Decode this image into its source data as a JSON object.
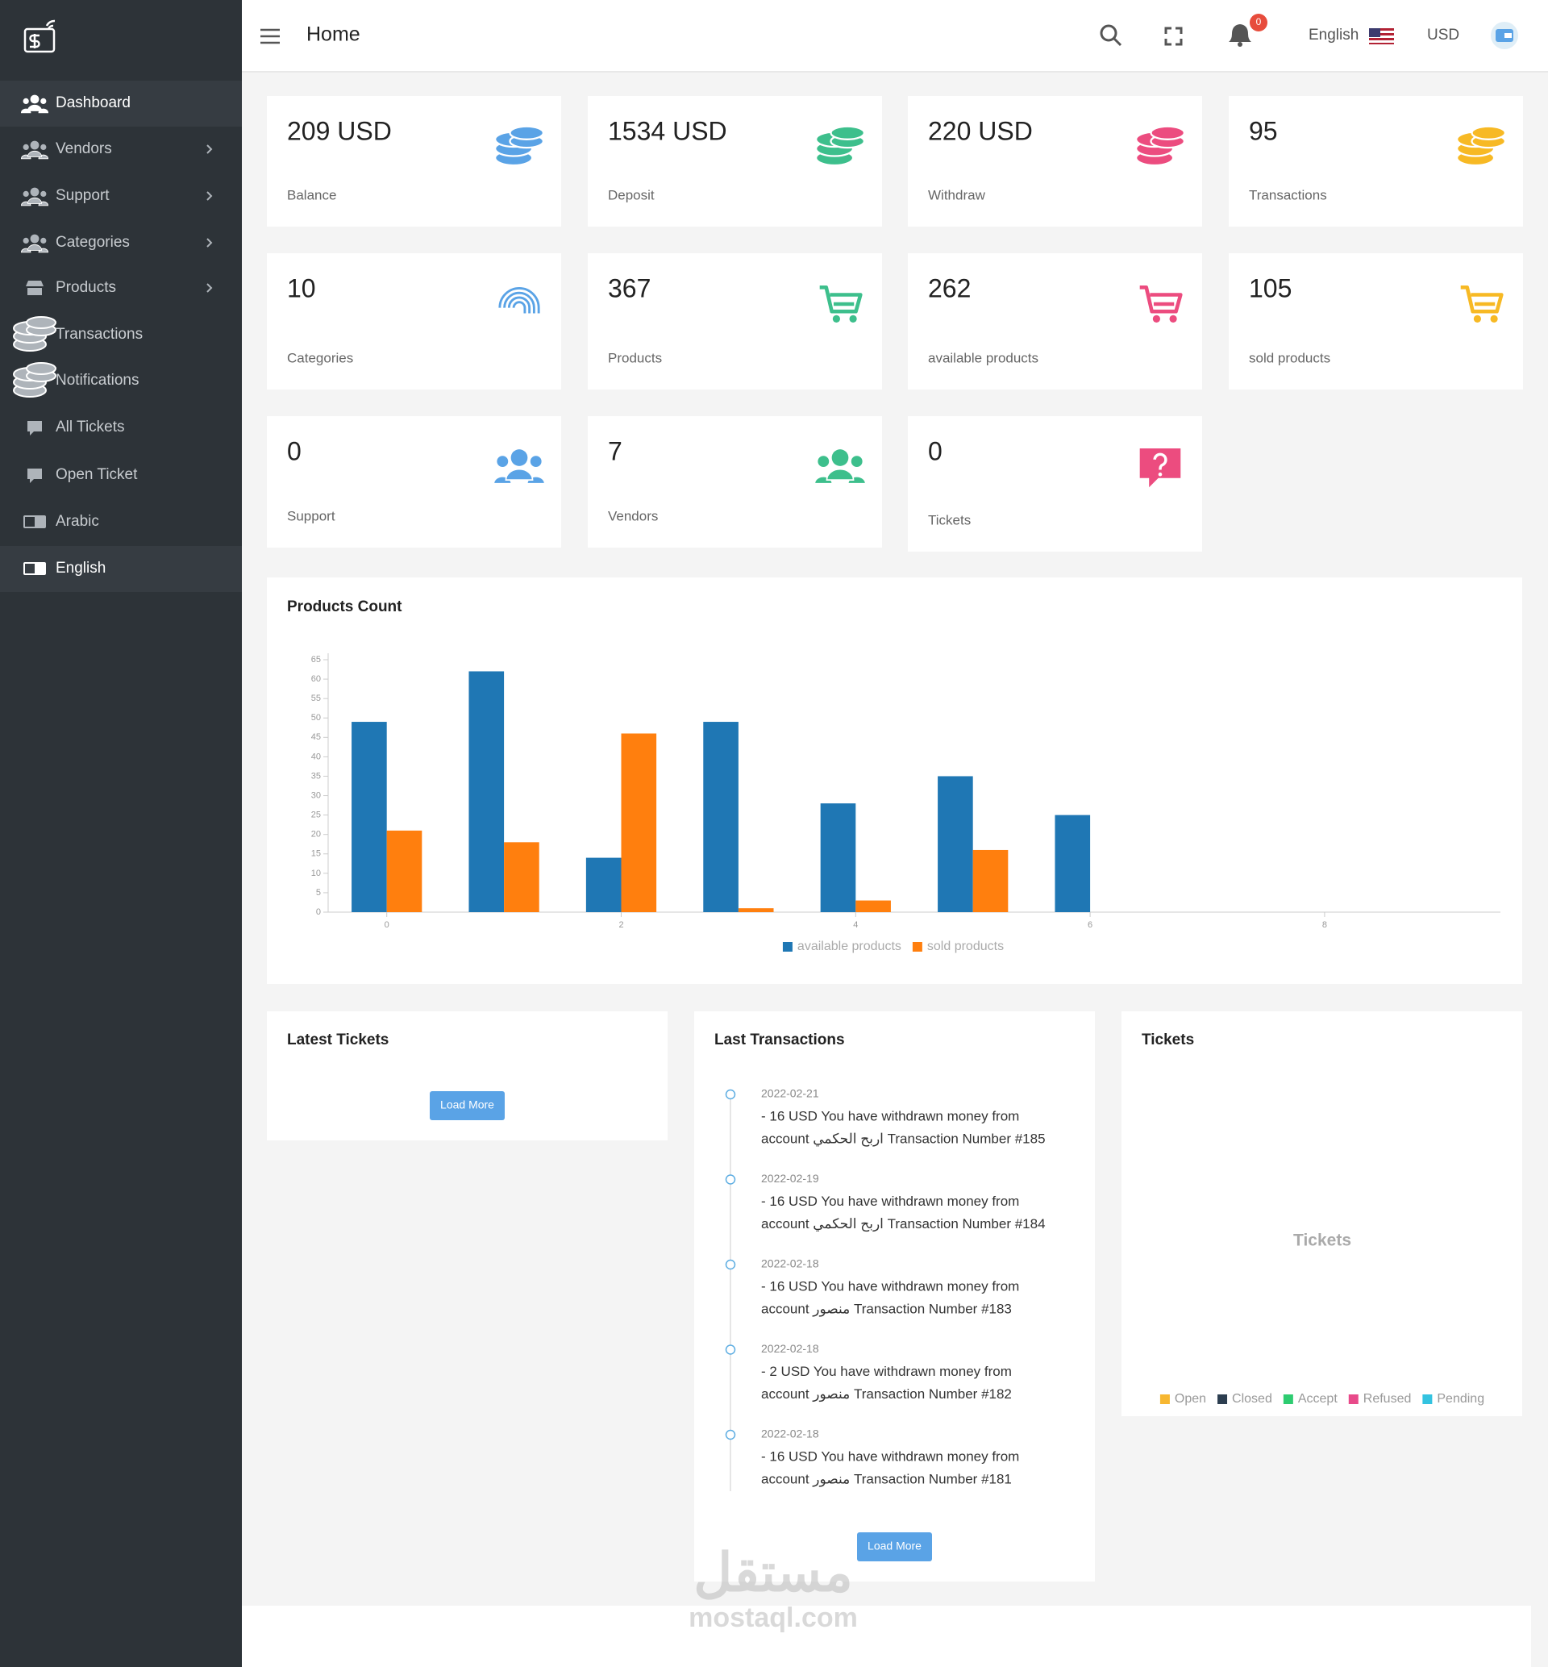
{
  "sidebar": {
    "menu": [
      {
        "label": "Dashboard",
        "icon": "users",
        "has_submenu": false,
        "active": true
      },
      {
        "label": "Vendors",
        "icon": "users",
        "has_submenu": true,
        "active": false
      },
      {
        "label": "Support",
        "icon": "users",
        "has_submenu": true,
        "active": false
      },
      {
        "label": "Categories",
        "icon": "users",
        "has_submenu": true,
        "active": false
      },
      {
        "label": "Products",
        "icon": "shop",
        "has_submenu": true,
        "active": false
      },
      {
        "label": "Transactions",
        "icon": "coins",
        "has_submenu": false,
        "active": false
      },
      {
        "label": "Notifications",
        "icon": "coins",
        "has_submenu": false,
        "active": false
      },
      {
        "label": "All Tickets",
        "icon": "chat",
        "has_submenu": false,
        "active": false
      },
      {
        "label": "Open Ticket",
        "icon": "chat",
        "has_submenu": false,
        "active": false
      },
      {
        "label": "Arabic",
        "icon": "lang",
        "has_submenu": false,
        "active": false
      },
      {
        "label": "English",
        "icon": "lang",
        "has_submenu": false,
        "active": true
      }
    ]
  },
  "header": {
    "title": "Home",
    "notifications": 0,
    "language": "English",
    "currency": "USD"
  },
  "stats": [
    {
      "value": "209 USD",
      "label": "Balance",
      "icon": "coins",
      "color": "#5aa3e6"
    },
    {
      "value": "1534 USD",
      "label": "Deposit",
      "icon": "coins",
      "color": "#3dbf8c"
    },
    {
      "value": "220 USD",
      "label": "Withdraw",
      "icon": "coins",
      "color": "#ec4c7f"
    },
    {
      "value": "95",
      "label": "Transactions",
      "icon": "coins",
      "color": "#f7b924"
    },
    {
      "value": "10",
      "label": "Categories",
      "icon": "fingerprint",
      "color": "#5aa3e6"
    },
    {
      "value": "367",
      "label": "Products",
      "icon": "cart",
      "color": "#3dbf8c"
    },
    {
      "value": "262",
      "label": "available products",
      "icon": "cart",
      "color": "#ec4c7f"
    },
    {
      "value": "105",
      "label": "sold products",
      "icon": "cart",
      "color": "#f7b924"
    },
    {
      "value": "0",
      "label": "Support",
      "icon": "users",
      "color": "#5aa3e6"
    },
    {
      "value": "7",
      "label": "Vendors",
      "icon": "users",
      "color": "#3dbf8c"
    },
    {
      "value": "0",
      "label": "Tickets",
      "icon": "question",
      "color": "#ec4c7f"
    }
  ],
  "chart_data": {
    "type": "bar",
    "title": "Products Count",
    "x": [
      0,
      1,
      2,
      3,
      4,
      5,
      6
    ],
    "series": [
      {
        "name": "available products",
        "color": "#1f77b4",
        "values": [
          49,
          62,
          14,
          49,
          28,
          35,
          25
        ]
      },
      {
        "name": "sold products",
        "color": "#ff7f0e",
        "values": [
          21,
          18,
          46,
          1,
          3,
          16,
          0
        ]
      }
    ],
    "xlim": [
      -0.5,
      9.5
    ],
    "xticks": [
      0,
      2,
      4,
      6,
      8
    ],
    "ylim": [
      0,
      65
    ],
    "yticks": [
      0,
      5,
      10,
      15,
      20,
      25,
      30,
      35,
      40,
      45,
      50,
      55,
      60,
      65
    ]
  },
  "latest_tickets": {
    "title": "Latest Tickets",
    "button": "Load More"
  },
  "last_transactions": {
    "title": "Last Transactions",
    "button": "Load More",
    "items": [
      {
        "date": "2022-02-21",
        "line1": "- 16 USD You have withdrawn money from",
        "line2": "account اربح الحكمي Transaction Number  #185"
      },
      {
        "date": "2022-02-19",
        "line1": "- 16 USD You have withdrawn money from",
        "line2": "account اربح الحكمي Transaction Number  #184"
      },
      {
        "date": "2022-02-18",
        "line1": "- 16 USD You have withdrawn money from",
        "line2": "account منصور Transaction Number  #183"
      },
      {
        "date": "2022-02-18",
        "line1": "- 2 USD You have withdrawn money from",
        "line2": "account منصور Transaction Number  #182"
      },
      {
        "date": "2022-02-18",
        "line1": "- 16 USD You have withdrawn money from",
        "line2": "account منصور Transaction Number  #181"
      }
    ]
  },
  "tickets_chart": {
    "type": "pie",
    "title": "Tickets",
    "chart_title": "Tickets",
    "series": [
      {
        "name": "Open",
        "color": "#f7b731"
      },
      {
        "name": "Closed",
        "color": "#2c3e50"
      },
      {
        "name": "Accept",
        "color": "#2ecc71"
      },
      {
        "name": "Refused",
        "color": "#e84a8a"
      },
      {
        "name": "Pending",
        "color": "#34c3e0"
      }
    ]
  },
  "watermark": {
    "arabic": "مستقل",
    "latin": "mostaql.com"
  }
}
